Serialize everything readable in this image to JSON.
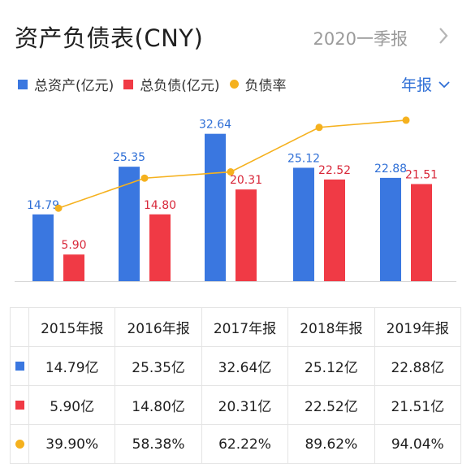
{
  "header": {
    "title": "资产负债表(CNY)",
    "period": "2020一季报"
  },
  "legend": [
    {
      "label": "总资产(亿元)",
      "color": "#3a77e0",
      "shape": "square"
    },
    {
      "label": "总负债(亿元)",
      "color": "#f03a45",
      "shape": "square"
    },
    {
      "label": "负债率",
      "color": "#f5b11e",
      "shape": "dot"
    }
  ],
  "selector": {
    "label": "年报",
    "icon": "chevron-down-icon"
  },
  "chart_data": {
    "type": "bar",
    "categories": [
      "2015年报",
      "2016年报",
      "2017年报",
      "2018年报",
      "2019年报"
    ],
    "series": [
      {
        "name": "总资产(亿元)",
        "values": [
          14.79,
          25.35,
          32.64,
          25.12,
          22.88
        ],
        "labels": [
          "14.79",
          "25.35",
          "32.64",
          "25.12",
          "22.88"
        ],
        "color": "#3a77e0",
        "kind": "bar"
      },
      {
        "name": "总负债(亿元)",
        "values": [
          5.9,
          14.8,
          20.31,
          22.52,
          21.51
        ],
        "labels": [
          "5.90",
          "14.80",
          "20.31",
          "22.52",
          "21.51"
        ],
        "color": "#f03a45",
        "kind": "bar"
      },
      {
        "name": "负债率",
        "values": [
          39.9,
          58.38,
          62.22,
          89.62,
          94.04
        ],
        "color": "#f5b11e",
        "kind": "line"
      }
    ],
    "ylim": [
      0,
      36
    ],
    "ratio_ylim": [
      0,
      100
    ],
    "label_colors": {
      "assets": "#2f6fd6",
      "liabilities": "#d8283a"
    }
  },
  "table": {
    "headers": [
      "2015年报",
      "2016年报",
      "2017年报",
      "2018年报",
      "2019年报"
    ],
    "rows": [
      {
        "marker": "square",
        "color": "#3a77e0",
        "cells": [
          "14.79亿",
          "25.35亿",
          "32.64亿",
          "25.12亿",
          "22.88亿"
        ]
      },
      {
        "marker": "square",
        "color": "#f03a45",
        "cells": [
          "5.90亿",
          "14.80亿",
          "20.31亿",
          "22.52亿",
          "21.51亿"
        ]
      },
      {
        "marker": "dot",
        "color": "#f5b11e",
        "cells": [
          "39.90%",
          "58.38%",
          "62.22%",
          "89.62%",
          "94.04%"
        ]
      }
    ]
  }
}
